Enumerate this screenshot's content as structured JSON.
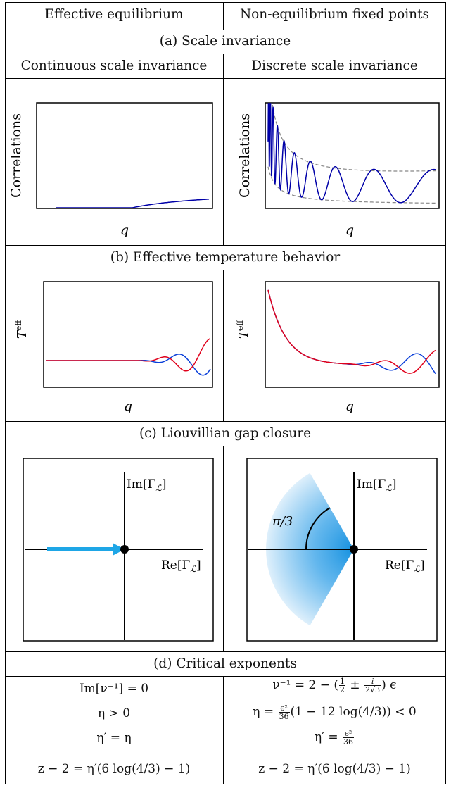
{
  "headers": {
    "left": "Effective equilibrium",
    "right": "Non-equilibrium fixed points"
  },
  "sections": {
    "a": {
      "title": "(a) Scale invariance",
      "left_subtitle": "Continuous scale invariance",
      "right_subtitle": "Discrete scale invariance",
      "ylabel": "Correlations",
      "xlabel": "q"
    },
    "b": {
      "title": "(b) Effective temperature behavior",
      "ylabel_base": "T",
      "ylabel_sup": "eff",
      "xlabel": "q"
    },
    "c": {
      "title": "(c) Liouvillian gap closure",
      "im_label": "Im[Γ",
      "re_label": "Re[Γ",
      "script_L": "ℒ",
      "close_bracket": "]",
      "angle_label": "π/3"
    },
    "d": {
      "title": "(d) Critical exponents",
      "left_rows": [
        "Im[ν⁻¹] = 0",
        "η > 0",
        "η′ = η",
        "z − 2 = η′(6 log(4/3) − 1)"
      ],
      "right_rows": {
        "r1_prefix": "ν⁻¹ = 2 − (",
        "r1_frac1_num": "1",
        "r1_frac1_den": "2",
        "r1_pm": "±",
        "r1_frac2_num": "i",
        "r1_frac2_den": "2√3",
        "r1_suffix": ") ϵ",
        "r2_prefix": "η =",
        "r2_num": "ϵ²",
        "r2_den": "36",
        "r2_suffix": "(1 − 12 log(4/3)) < 0",
        "r3_prefix": "η′ =",
        "r3_num": "ϵ²",
        "r3_den": "36",
        "r4": "z − 2 = η′(6 log(4/3) − 1)"
      }
    }
  },
  "colors": {
    "blue": "#0000a8",
    "bright_blue": "#0a3fd9",
    "red": "#e0001b",
    "arrow": "#1ea6e6",
    "wedge": "#2f9be6",
    "dashed": "#888888"
  }
}
